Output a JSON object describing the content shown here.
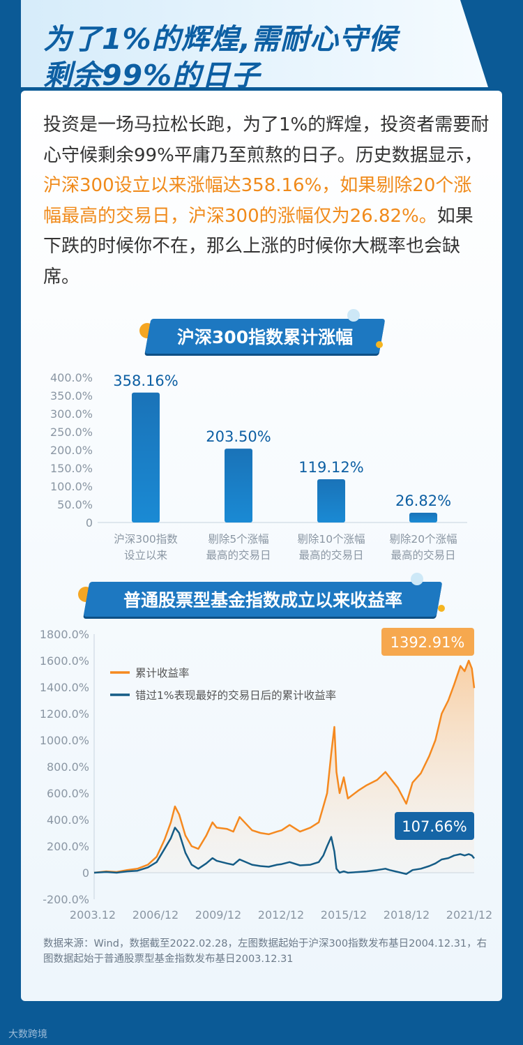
{
  "header": {
    "title_line1": "为了1%的辉煌,需耐心守候",
    "title_line2": "剩余99%的日子"
  },
  "intro": {
    "part1": "投资是一场马拉松长跑，为了1%的辉煌，投资者需要耐心守候剩余99%平庸乃至煎熬的日子。历史数据显示，",
    "highlight": "沪深300设立以来涨幅达358.16%，如果剔除20个涨幅最高的交易日，沪深300的涨幅仅为26.82%。",
    "part2": "如果下跌的时候你不在，那么上涨的时候你大概率也会缺席。"
  },
  "colors": {
    "accent_orange": "#f08a1a",
    "primary_blue": "#0d6cb0",
    "dark_blue": "#0b5a96",
    "series_orange": "#f5891f",
    "series_blue": "#155c86"
  },
  "chart1": {
    "banner": "沪深300指数累计涨幅"
  },
  "chart2": {
    "banner": "普通股票型基金指数成立以来收益率"
  },
  "chart_data": [
    {
      "type": "bar",
      "title": "沪深300指数累计涨幅",
      "categories": [
        [
          "沪深300指数",
          "设立以来"
        ],
        [
          "剔除5个涨幅",
          "最高的交易日"
        ],
        [
          "剔除10个涨幅",
          "最高的交易日"
        ],
        [
          "剔除20个涨幅",
          "最高的交易日"
        ]
      ],
      "values": [
        358.16,
        203.5,
        119.12,
        26.82
      ],
      "data_labels": [
        "358.16%",
        "203.50%",
        "119.12%",
        "26.82%"
      ],
      "yticks": [
        "400.0%",
        "350.0%",
        "300.0%",
        "250.0%",
        "200.0%",
        "150.0%",
        "100.0%",
        "50.0%",
        "0"
      ],
      "ylim": [
        0,
        400
      ]
    },
    {
      "type": "area",
      "title": "普通股票型基金指数成立以来收益率",
      "xticks": [
        "2003.12",
        "2006/12",
        "2009/12",
        "2012/12",
        "2015/12",
        "2018/12",
        "2021/12"
      ],
      "yticks": [
        "1800.0%",
        "1600.0%",
        "1400.0%",
        "1200.0%",
        "1000.0%",
        "800.0%",
        "600.0%",
        "400.0%",
        "200.0%",
        "0",
        "-200.0%"
      ],
      "ylim": [
        -200,
        1800
      ],
      "xlim": [
        2003.92,
        2022.16
      ],
      "legend": "top-left",
      "series": [
        {
          "name": "累计收益率",
          "end_label": "1392.91%",
          "x": [
            2003.92,
            2004.5,
            2005.0,
            2005.5,
            2006.0,
            2006.5,
            2006.92,
            2007.3,
            2007.6,
            2007.8,
            2008.0,
            2008.3,
            2008.6,
            2008.92,
            2009.3,
            2009.6,
            2009.8,
            2010.3,
            2010.6,
            2010.9,
            2011.5,
            2011.9,
            2012.3,
            2012.7,
            2012.92,
            2013.3,
            2013.8,
            2014.3,
            2014.7,
            2014.92,
            2015.1,
            2015.3,
            2015.45,
            2015.55,
            2015.7,
            2015.9,
            2016.1,
            2016.6,
            2017.0,
            2017.5,
            2017.9,
            2018.1,
            2018.5,
            2018.9,
            2019.2,
            2019.6,
            2020.0,
            2020.3,
            2020.6,
            2020.92,
            2021.2,
            2021.5,
            2021.7,
            2021.9,
            2022.05,
            2022.16
          ],
          "y": [
            0,
            10,
            5,
            20,
            30,
            60,
            120,
            250,
            380,
            500,
            440,
            280,
            200,
            180,
            280,
            380,
            340,
            330,
            310,
            420,
            320,
            300,
            290,
            310,
            320,
            360,
            310,
            340,
            380,
            500,
            600,
            900,
            1100,
            760,
            600,
            720,
            560,
            620,
            660,
            700,
            760,
            720,
            640,
            520,
            680,
            750,
            880,
            1000,
            1200,
            1300,
            1420,
            1560,
            1520,
            1600,
            1540,
            1392.91
          ]
        },
        {
          "name": "错过1%表现最好的交易日后的累计收益率",
          "end_label": "107.66%",
          "x": [
            2003.92,
            2004.5,
            2005.0,
            2005.5,
            2006.0,
            2006.5,
            2006.92,
            2007.3,
            2007.6,
            2007.8,
            2008.0,
            2008.3,
            2008.6,
            2008.92,
            2009.3,
            2009.6,
            2009.8,
            2010.3,
            2010.6,
            2010.9,
            2011.5,
            2011.9,
            2012.3,
            2012.7,
            2012.92,
            2013.3,
            2013.8,
            2014.3,
            2014.7,
            2014.92,
            2015.1,
            2015.3,
            2015.45,
            2015.55,
            2015.7,
            2015.9,
            2016.1,
            2016.6,
            2017.0,
            2017.5,
            2017.9,
            2018.1,
            2018.5,
            2018.9,
            2019.2,
            2019.6,
            2020.0,
            2020.3,
            2020.6,
            2020.92,
            2021.2,
            2021.5,
            2021.7,
            2021.9,
            2022.05,
            2022.16
          ],
          "y": [
            0,
            5,
            0,
            10,
            15,
            40,
            80,
            180,
            260,
            340,
            300,
            150,
            60,
            30,
            70,
            110,
            90,
            70,
            60,
            100,
            60,
            50,
            45,
            60,
            65,
            80,
            55,
            60,
            80,
            130,
            200,
            270,
            160,
            30,
            0,
            10,
            0,
            5,
            10,
            20,
            30,
            20,
            5,
            -10,
            20,
            30,
            50,
            70,
            100,
            110,
            130,
            140,
            130,
            140,
            130,
            107.66
          ]
        }
      ]
    }
  ],
  "source": "数据来源：Wind，数据截至2022.02.28，左图数据起始于沪深300指数发布基日2004.12.31，右图数据起始于普通股票型基金指数发布基日2003.12.31",
  "brand": "大数跨境"
}
